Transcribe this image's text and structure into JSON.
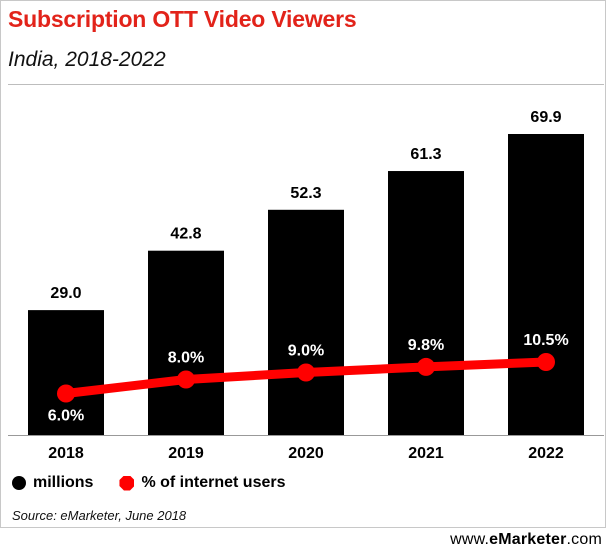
{
  "header": {
    "title": "Subscription OTT Video Viewers",
    "subtitle": "India, 2018-2022"
  },
  "legend": {
    "bars_label": "millions",
    "line_label": "% of internet users"
  },
  "footer": {
    "source": "Source: eMarketer, June 2018",
    "brand_prefix": "www.",
    "brand_name": "eMarketer",
    "brand_suffix": ".com"
  },
  "colors": {
    "title": "#e2231a",
    "bars": "#000000",
    "line": "#ff0000"
  },
  "chart_data": {
    "type": "bar",
    "title": "Subscription OTT Video Viewers",
    "subtitle": "India, 2018-2022",
    "categories": [
      "2018",
      "2019",
      "2020",
      "2021",
      "2022"
    ],
    "series": [
      {
        "name": "millions",
        "type": "bar",
        "values": [
          29.0,
          42.8,
          52.3,
          61.3,
          69.9
        ],
        "labels": [
          "29.0",
          "42.8",
          "52.3",
          "61.3",
          "69.9"
        ]
      },
      {
        "name": "% of internet users",
        "type": "line",
        "values": [
          6.0,
          8.0,
          9.0,
          9.8,
          10.5
        ],
        "labels": [
          "6.0%",
          "8.0%",
          "9.0%",
          "9.8%",
          "10.5%"
        ]
      }
    ],
    "legend_position": "bottom-left",
    "grid": false
  }
}
